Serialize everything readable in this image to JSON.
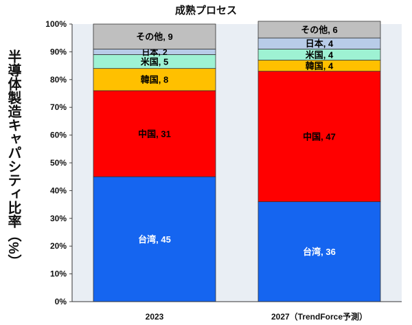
{
  "chart_data": {
    "type": "bar",
    "stacked": true,
    "title": "成熟プロセス",
    "xlabel": "",
    "ylabel": "半導体製造キャパシティ比率（%）",
    "ylim": [
      0,
      100
    ],
    "yticks": [
      0,
      10,
      20,
      30,
      40,
      50,
      60,
      70,
      80,
      90,
      100
    ],
    "ytick_suffix": "%",
    "grid": false,
    "legend": "none",
    "categories": [
      "2023",
      "2027（TrendForce予測）"
    ],
    "series": [
      {
        "name": "台湾",
        "values": [
          45,
          36
        ],
        "color": "#1565F0",
        "label_color": "#ffffff"
      },
      {
        "name": "中国",
        "values": [
          31,
          47
        ],
        "color": "#FF0000",
        "label_color": "#000000"
      },
      {
        "name": "韓国",
        "values": [
          8,
          4
        ],
        "color": "#FFC000",
        "label_color": "#000000"
      },
      {
        "name": "米国",
        "values": [
          5,
          4
        ],
        "color": "#9EF2D3",
        "label_color": "#000000"
      },
      {
        "name": "日本",
        "values": [
          2,
          4
        ],
        "color": "#B8CCE8",
        "label_color": "#000000"
      },
      {
        "name": "その他",
        "values": [
          9,
          6
        ],
        "color": "#BFBFBF",
        "label_color": "#000000"
      }
    ]
  }
}
